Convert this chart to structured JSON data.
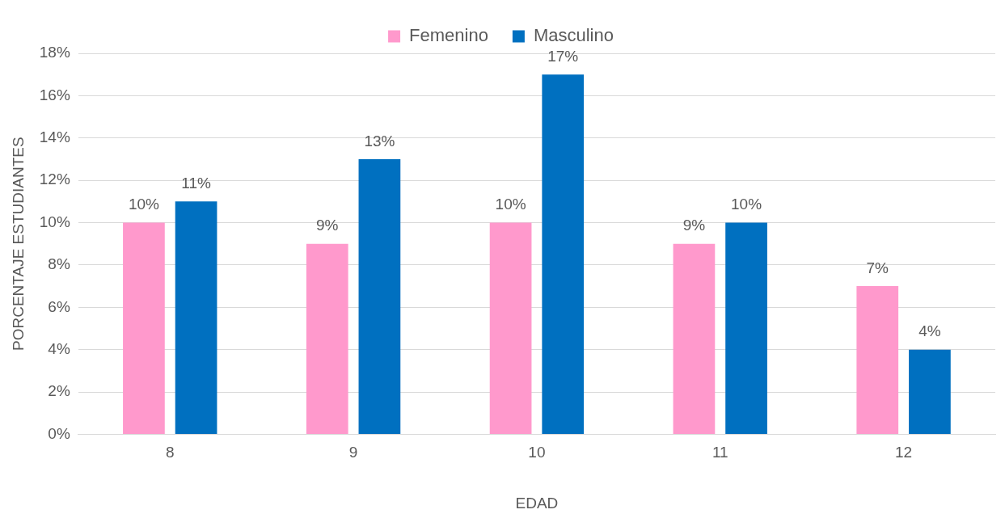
{
  "chart_data": {
    "type": "bar",
    "xlabel": "EDAD",
    "ylabel": "PORCENTAJE ESTUDIANTES",
    "categories": [
      "8",
      "9",
      "10",
      "11",
      "12"
    ],
    "series": [
      {
        "name": "Femenino",
        "color": "#ff99cc",
        "values": [
          10,
          9,
          10,
          9,
          7
        ],
        "value_labels": [
          "10%",
          "9%",
          "10%",
          "9%",
          "7%"
        ]
      },
      {
        "name": "Masculino",
        "color": "#0070c0",
        "values": [
          11,
          13,
          17,
          10,
          4
        ],
        "value_labels": [
          "11%",
          "13%",
          "17%",
          "10%",
          "4%"
        ]
      }
    ],
    "ylim": [
      0,
      18
    ],
    "yticks": [
      {
        "value": 0,
        "label": "0%"
      },
      {
        "value": 2,
        "label": "2%"
      },
      {
        "value": 4,
        "label": "4%"
      },
      {
        "value": 6,
        "label": "6%"
      },
      {
        "value": 8,
        "label": "8%"
      },
      {
        "value": 10,
        "label": "10%"
      },
      {
        "value": 12,
        "label": "12%"
      },
      {
        "value": 14,
        "label": "14%"
      },
      {
        "value": 16,
        "label": "16%"
      },
      {
        "value": 18,
        "label": "18%"
      }
    ],
    "grid": "y",
    "legend": "top"
  }
}
